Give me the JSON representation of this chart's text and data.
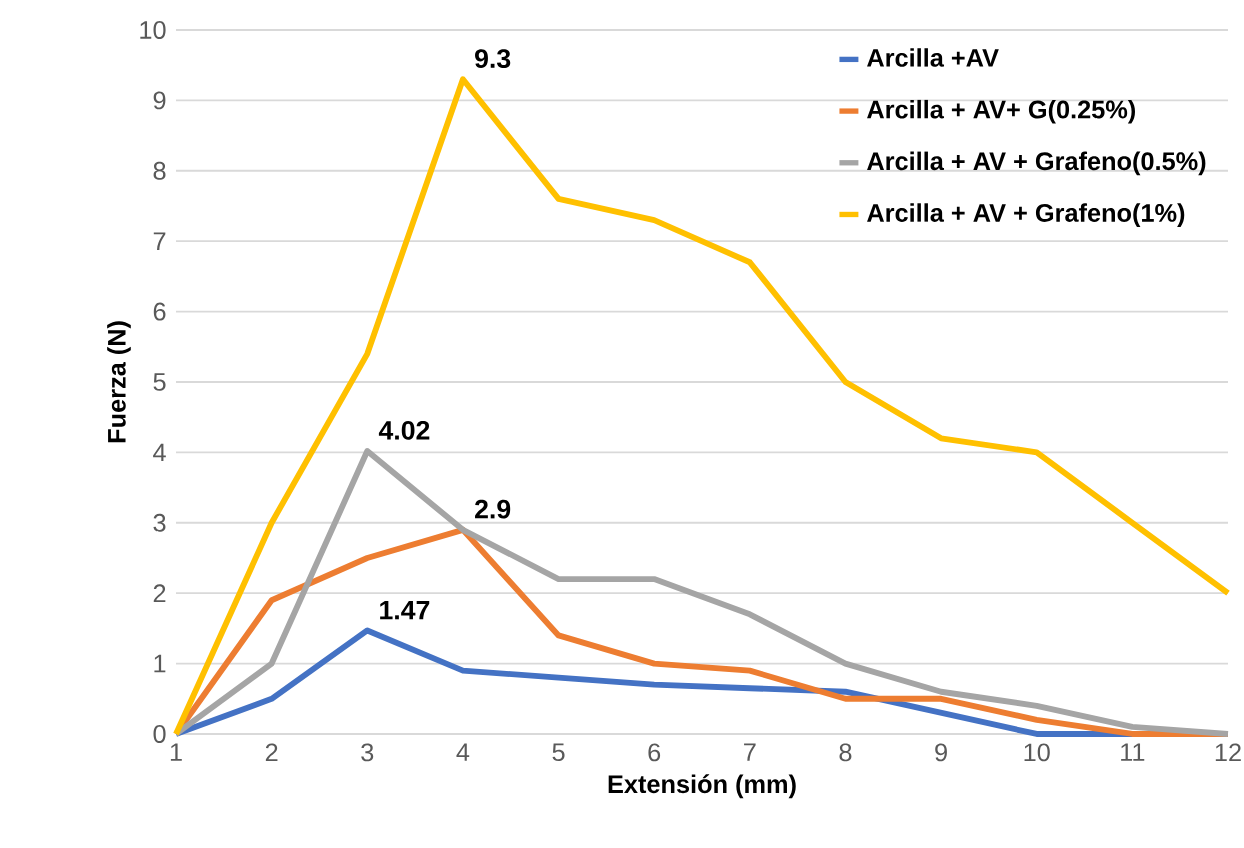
{
  "chart_data": {
    "type": "line",
    "xlabel": "Extensión (mm)",
    "ylabel": "Fuerza (N)",
    "x": [
      1,
      2,
      3,
      4,
      5,
      6,
      7,
      8,
      9,
      10,
      11,
      12
    ],
    "xlim": [
      1,
      12
    ],
    "xticks": [
      1,
      2,
      3,
      4,
      5,
      6,
      7,
      8,
      9,
      10,
      11,
      12
    ],
    "ylim": [
      0,
      10
    ],
    "yticks": [
      0,
      1,
      2,
      3,
      4,
      5,
      6,
      7,
      8,
      9,
      10
    ],
    "grid": "y",
    "legend": "top right",
    "marker": "none",
    "line_style": "solid",
    "series": [
      {
        "name": "Arcilla +AV",
        "color": "#4472c4",
        "values": [
          0,
          0.5,
          1.47,
          0.9,
          0.8,
          0.7,
          0.65,
          0.6,
          0.3,
          0,
          0,
          0
        ],
        "value_labels": [
          null,
          null,
          "1.47",
          null,
          null,
          null,
          null,
          null,
          null,
          null,
          null,
          null
        ]
      },
      {
        "name": "Arcilla + AV+ G(0.25%)",
        "color": "#ed7d31",
        "values": [
          0,
          1.9,
          2.5,
          2.9,
          1.4,
          1.0,
          0.9,
          0.5,
          0.5,
          0.2,
          0,
          0
        ],
        "value_labels": [
          null,
          null,
          null,
          "2.9",
          null,
          null,
          null,
          null,
          null,
          null,
          null,
          null
        ]
      },
      {
        "name": "Arcilla + AV + Grafeno(0.5%)",
        "color": "#a5a5a5",
        "values": [
          0,
          1.0,
          4.02,
          2.9,
          2.2,
          2.2,
          1.7,
          1.0,
          0.6,
          0.4,
          0.1,
          0
        ],
        "value_labels": [
          null,
          null,
          "4.02",
          null,
          null,
          null,
          null,
          null,
          null,
          null,
          null,
          null
        ]
      },
      {
        "name": "Arcilla + AV + Grafeno(1%)",
        "color": "#ffc000",
        "values": [
          0,
          3.0,
          5.4,
          9.3,
          7.6,
          7.3,
          6.7,
          5.0,
          4.2,
          4.0,
          3.0,
          2.0
        ],
        "value_labels": [
          null,
          null,
          null,
          "9.3",
          null,
          null,
          null,
          null,
          null,
          null,
          null,
          null
        ]
      }
    ]
  }
}
